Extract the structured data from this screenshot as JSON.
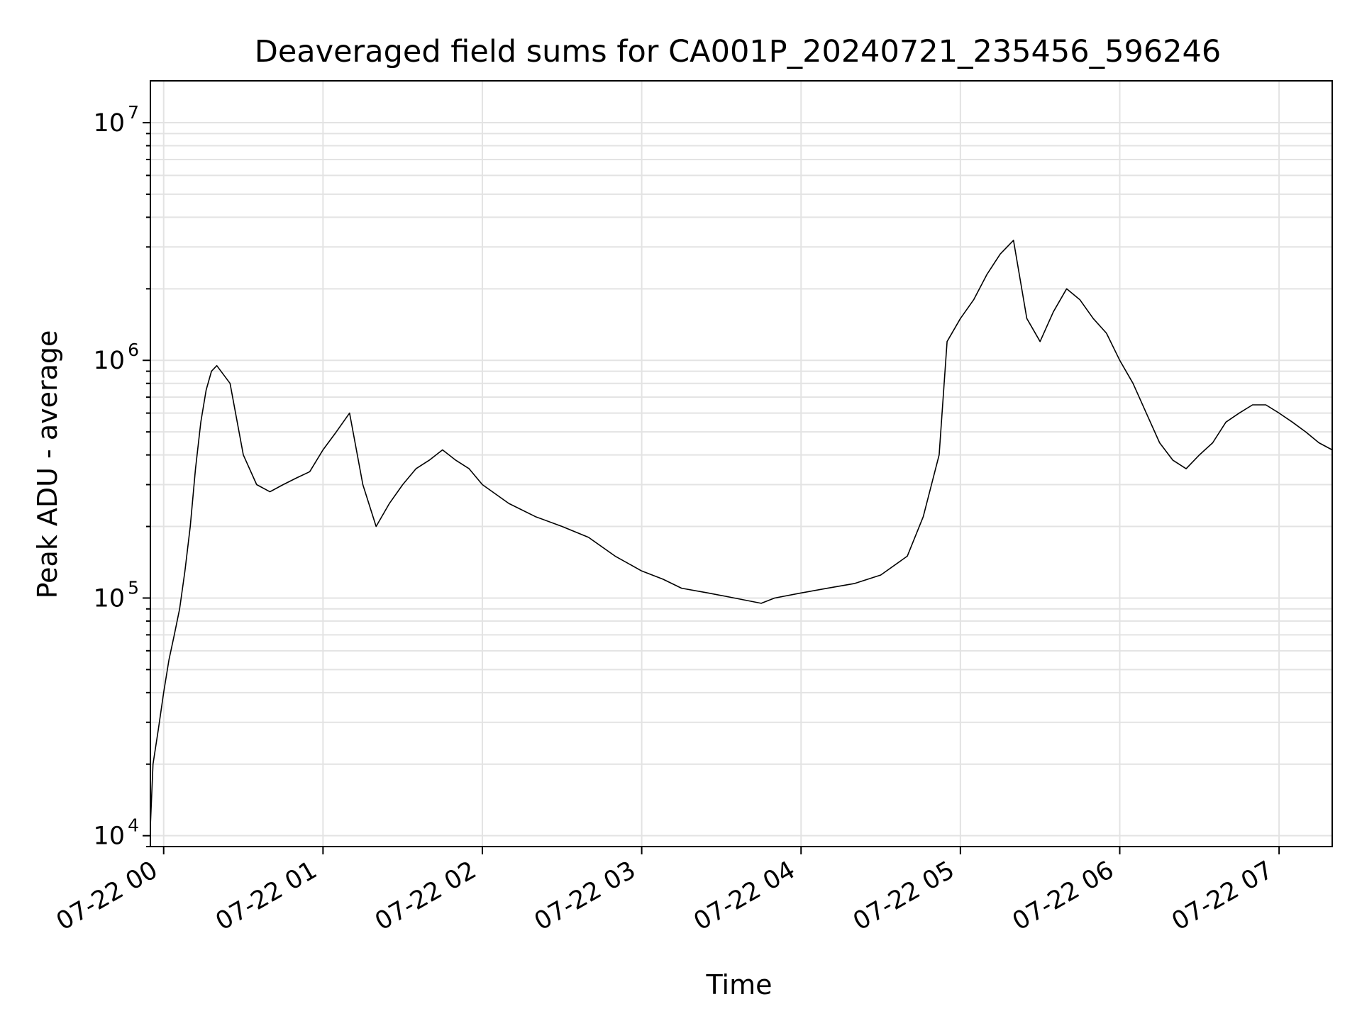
{
  "chart_data": {
    "type": "line",
    "title": "Deaveraged field sums for CA001P_20240721_235456_596246",
    "xlabel": "Time",
    "ylabel": "Peak ADU - average",
    "yscale": "log",
    "ylim": [
      9000,
      15000000
    ],
    "xlim": [
      "2024-07-21 23:55",
      "2024-07-22 07:20"
    ],
    "grid": true,
    "x_ticks": [
      "07-22 00",
      "07-22 01",
      "07-22 02",
      "07-22 03",
      "07-22 04",
      "07-22 05",
      "07-22 06",
      "07-22 07"
    ],
    "y_ticks": [
      {
        "value": 10000,
        "base": "10",
        "exp": "4"
      },
      {
        "value": 100000,
        "base": "10",
        "exp": "5"
      },
      {
        "value": 1000000,
        "base": "10",
        "exp": "6"
      },
      {
        "value": 10000000,
        "base": "10",
        "exp": "7"
      }
    ],
    "series": [
      {
        "color": "#000000",
        "x": [
          "2024-07-21 23:55",
          "2024-07-21 23:56",
          "2024-07-21 23:58",
          "2024-07-22 00:00",
          "2024-07-22 00:02",
          "2024-07-22 00:04",
          "2024-07-22 00:06",
          "2024-07-22 00:08",
          "2024-07-22 00:10",
          "2024-07-22 00:12",
          "2024-07-22 00:14",
          "2024-07-22 00:16",
          "2024-07-22 00:18",
          "2024-07-22 00:20",
          "2024-07-22 00:25",
          "2024-07-22 00:30",
          "2024-07-22 00:35",
          "2024-07-22 00:40",
          "2024-07-22 00:45",
          "2024-07-22 00:50",
          "2024-07-22 00:55",
          "2024-07-22 01:00",
          "2024-07-22 01:05",
          "2024-07-22 01:10",
          "2024-07-22 01:15",
          "2024-07-22 01:20",
          "2024-07-22 01:25",
          "2024-07-22 01:30",
          "2024-07-22 01:35",
          "2024-07-22 01:40",
          "2024-07-22 01:45",
          "2024-07-22 01:50",
          "2024-07-22 01:55",
          "2024-07-22 02:00",
          "2024-07-22 02:10",
          "2024-07-22 02:20",
          "2024-07-22 02:30",
          "2024-07-22 02:40",
          "2024-07-22 02:50",
          "2024-07-22 03:00",
          "2024-07-22 03:08",
          "2024-07-22 03:15",
          "2024-07-22 03:25",
          "2024-07-22 03:35",
          "2024-07-22 03:45",
          "2024-07-22 03:50",
          "2024-07-22 04:00",
          "2024-07-22 04:10",
          "2024-07-22 04:20",
          "2024-07-22 04:30",
          "2024-07-22 04:40",
          "2024-07-22 04:46",
          "2024-07-22 04:52",
          "2024-07-22 04:55",
          "2024-07-22 05:00",
          "2024-07-22 05:05",
          "2024-07-22 05:10",
          "2024-07-22 05:15",
          "2024-07-22 05:20",
          "2024-07-22 05:25",
          "2024-07-22 05:30",
          "2024-07-22 05:35",
          "2024-07-22 05:40",
          "2024-07-22 05:45",
          "2024-07-22 05:50",
          "2024-07-22 05:55",
          "2024-07-22 06:00",
          "2024-07-22 06:05",
          "2024-07-22 06:10",
          "2024-07-22 06:15",
          "2024-07-22 06:20",
          "2024-07-22 06:25",
          "2024-07-22 06:30",
          "2024-07-22 06:35",
          "2024-07-22 06:40",
          "2024-07-22 06:45",
          "2024-07-22 06:50",
          "2024-07-22 06:55",
          "2024-07-22 07:00",
          "2024-07-22 07:05",
          "2024-07-22 07:10",
          "2024-07-22 07:15",
          "2024-07-22 07:20"
        ],
        "y": [
          11000,
          20000,
          28000,
          40000,
          55000,
          70000,
          90000,
          130000,
          200000,
          350000,
          550000,
          750000,
          900000,
          950000,
          800000,
          400000,
          300000,
          280000,
          300000,
          320000,
          340000,
          420000,
          500000,
          600000,
          300000,
          200000,
          250000,
          300000,
          350000,
          380000,
          420000,
          380000,
          350000,
          300000,
          250000,
          220000,
          200000,
          180000,
          150000,
          130000,
          120000,
          110000,
          105000,
          100000,
          95000,
          100000,
          105000,
          110000,
          115000,
          125000,
          150000,
          220000,
          400000,
          1200000,
          1500000,
          1800000,
          2300000,
          2800000,
          3200000,
          1500000,
          1200000,
          1600000,
          2000000,
          1800000,
          1500000,
          1300000,
          1000000,
          800000,
          600000,
          450000,
          380000,
          350000,
          400000,
          450000,
          550000,
          600000,
          650000,
          650000,
          600000,
          550000,
          500000,
          450000,
          420000
        ]
      }
    ]
  }
}
